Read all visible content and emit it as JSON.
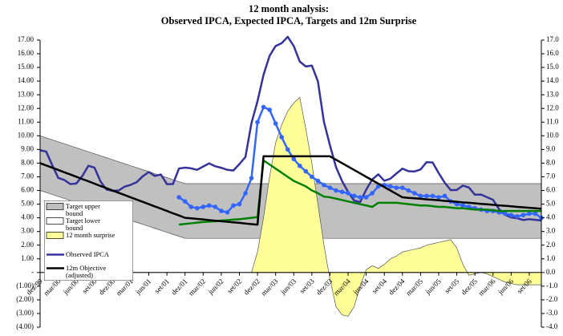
{
  "chart_data": {
    "type": "line",
    "title": "12 month analysis:",
    "subtitle": "Observed IPCA, Expected IPCA, Targets and 12m Surprise",
    "categories": [
      "dez/99",
      null,
      null,
      "mar/00",
      null,
      null,
      "jun/00",
      null,
      null,
      "set/00",
      null,
      null,
      "dez/00",
      null,
      null,
      "mar/01",
      null,
      null,
      "jun/01",
      null,
      null,
      "set/01",
      null,
      null,
      "dez/01",
      null,
      null,
      "mar/02",
      null,
      null,
      "jun/02",
      null,
      null,
      "set/02",
      null,
      null,
      "dez/02",
      null,
      null,
      "mar/03",
      null,
      null,
      "jun/03",
      null,
      null,
      "set/03",
      null,
      null,
      "dez/03",
      null,
      null,
      "mar/04",
      null,
      null,
      "jun/04",
      null,
      null,
      "set/04",
      null,
      null,
      "dez/04",
      null,
      null,
      "mar/05",
      null,
      null,
      "jun/05",
      null,
      null,
      "set/05",
      null,
      null,
      "dez/05",
      null,
      null,
      "mar/06",
      null,
      null,
      "jun/06",
      null,
      null,
      "set/06",
      null,
      null
    ],
    "ylim": [
      -4,
      17
    ],
    "yticks": [
      {
        "value": 17,
        "label": "17.00"
      },
      {
        "value": 16,
        "label": "16.00"
      },
      {
        "value": 15,
        "label": "15.00"
      },
      {
        "value": 14,
        "label": "14.00"
      },
      {
        "value": 13,
        "label": "13.00"
      },
      {
        "value": 12,
        "label": "12.00"
      },
      {
        "value": 11,
        "label": "11.00"
      },
      {
        "value": 10,
        "label": "10.00"
      },
      {
        "value": 9,
        "label": "9.00"
      },
      {
        "value": 8,
        "label": "8.00"
      },
      {
        "value": 7,
        "label": "7.00"
      },
      {
        "value": 6,
        "label": "6.00"
      },
      {
        "value": 5,
        "label": "5.00"
      },
      {
        "value": 4,
        "label": "4.00"
      },
      {
        "value": 3,
        "label": "3.00"
      },
      {
        "value": 2,
        "label": "2.00"
      },
      {
        "value": 1,
        "label": "1.00"
      },
      {
        "value": 0,
        "label": "-"
      },
      {
        "value": -1,
        "label": "(1.00)"
      },
      {
        "value": -2,
        "label": "(2.00)"
      },
      {
        "value": -3,
        "label": "(3.00)"
      },
      {
        "value": -4,
        "label": "(4.00)"
      }
    ],
    "y2lim": [
      -4,
      17
    ],
    "y2ticks": [
      {
        "value": 17,
        "label": "17.0"
      },
      {
        "value": 16,
        "label": "16.0"
      },
      {
        "value": 15,
        "label": "15.0"
      },
      {
        "value": 14,
        "label": "14.0"
      },
      {
        "value": 13,
        "label": "13.0"
      },
      {
        "value": 12,
        "label": "12.0"
      },
      {
        "value": 11,
        "label": "11.0"
      },
      {
        "value": 10,
        "label": "10.0"
      },
      {
        "value": 9,
        "label": "9.0"
      },
      {
        "value": 8,
        "label": "8.0"
      },
      {
        "value": 7,
        "label": "7.0"
      },
      {
        "value": 6,
        "label": "6.0"
      },
      {
        "value": 5,
        "label": "5.0"
      },
      {
        "value": 4,
        "label": "4.0"
      },
      {
        "value": 3,
        "label": "3.0"
      },
      {
        "value": 2,
        "label": "2.0"
      },
      {
        "value": 1,
        "label": "1.0"
      },
      {
        "value": 0,
        "label": "0.0"
      },
      {
        "value": -1,
        "label": "-1.0"
      },
      {
        "value": -2,
        "label": "-2.0"
      },
      {
        "value": -3,
        "label": "-3.0"
      },
      {
        "value": -4,
        "label": "-4.0"
      }
    ],
    "series": [
      {
        "name": "Target upper bound",
        "style": "area",
        "color": "#c0c0c0",
        "values": [
          10,
          9.85,
          9.71,
          9.56,
          9.42,
          9.27,
          9.13,
          8.98,
          8.83,
          8.69,
          8.54,
          8.4,
          8.25,
          8.1,
          7.96,
          7.81,
          7.67,
          7.52,
          7.38,
          7.23,
          7.08,
          6.94,
          6.79,
          6.65,
          6.5,
          6.5,
          6.5,
          6.5,
          6.5,
          6.5,
          6.5,
          6.5,
          6.5,
          6.5,
          6.5,
          6.5,
          6.5,
          6.5,
          6.5,
          6.5,
          6.5,
          6.5,
          6.5,
          6.5,
          6.5,
          6.5,
          6.5,
          6.5,
          6.5,
          6.5,
          6.5,
          6.5,
          6.5,
          6.5,
          6.5,
          6.5,
          6.5,
          6.5,
          6.5,
          6.5,
          6.5,
          6.5,
          6.5,
          6.5,
          6.5,
          6.5,
          6.5,
          6.5,
          6.5,
          6.5,
          6.5,
          6.5,
          6.5,
          6.5,
          6.5,
          6.5,
          6.5,
          6.5,
          6.5,
          6.5,
          6.5,
          6.5,
          6.5,
          6.5
        ]
      },
      {
        "name": "Target lower bound",
        "style": "area",
        "color": "#ffffff",
        "values": [
          6,
          5.85,
          5.71,
          5.56,
          5.42,
          5.27,
          5.13,
          4.98,
          4.83,
          4.69,
          4.54,
          4.4,
          4.25,
          4.1,
          3.96,
          3.81,
          3.67,
          3.52,
          3.38,
          3.23,
          3.08,
          2.94,
          2.79,
          2.65,
          2.5,
          2.5,
          2.5,
          2.5,
          2.5,
          2.5,
          2.5,
          2.5,
          2.5,
          2.5,
          2.5,
          2.5,
          2.5,
          2.5,
          2.5,
          2.5,
          2.5,
          2.5,
          2.5,
          2.5,
          2.5,
          2.5,
          2.5,
          2.5,
          2.5,
          2.5,
          2.5,
          2.5,
          2.5,
          2.5,
          2.5,
          2.5,
          2.5,
          2.5,
          2.5,
          2.5,
          2.5,
          2.5,
          2.5,
          2.5,
          2.5,
          2.5,
          2.5,
          2.5,
          2.5,
          2.5,
          2.5,
          2.5,
          2.5,
          2.5,
          2.5,
          2.5,
          2.5,
          2.5,
          2.5,
          2.5,
          2.5,
          2.5,
          2.5,
          2.5
        ]
      },
      {
        "name": "12 month surprise",
        "style": "area",
        "color": "#ffff99",
        "values": [
          null,
          null,
          null,
          null,
          null,
          null,
          null,
          null,
          null,
          null,
          null,
          null,
          null,
          null,
          null,
          null,
          null,
          null,
          null,
          null,
          null,
          null,
          null,
          null,
          null,
          null,
          null,
          null,
          null,
          null,
          null,
          null,
          null,
          null,
          null,
          0,
          1.5,
          4.0,
          7.0,
          9.5,
          10.8,
          11.8,
          12.4,
          12.8,
          10.5,
          8.0,
          5.0,
          2.0,
          -0.5,
          -2.5,
          -3.1,
          -3.2,
          -2.5,
          -1.0,
          0.2,
          0.5,
          0.3,
          0.6,
          1.0,
          1.2,
          1.5,
          1.6,
          1.7,
          1.8,
          2.0,
          2.1,
          2.2,
          2.3,
          2.4,
          1.8,
          0.6,
          -0.2,
          -0.1,
          0,
          -0.1,
          -0.3,
          -0.5,
          -0.7,
          -0.8,
          -0.9,
          -0.9,
          -0.9,
          -0.9,
          -0.9
        ]
      },
      {
        "name": "Observed IPCA",
        "style": "line",
        "color": "#333399",
        "values": [
          8.94,
          8.85,
          7.86,
          6.92,
          6.77,
          6.47,
          6.51,
          7.06,
          7.81,
          7.67,
          6.66,
          6.07,
          5.97,
          6.0,
          6.28,
          6.41,
          6.61,
          7.04,
          7.35,
          7.06,
          7.17,
          6.46,
          6.47,
          7.61,
          7.67,
          7.62,
          7.51,
          7.75,
          7.98,
          7.77,
          7.66,
          7.51,
          7.46,
          7.93,
          8.45,
          10.93,
          12.53,
          14.47,
          15.85,
          16.57,
          16.77,
          17.24,
          16.57,
          15.43,
          15.07,
          15.14,
          13.98,
          11.02,
          9.3,
          7.71,
          6.69,
          5.89,
          5.26,
          5.15,
          6.06,
          6.81,
          7.18,
          6.71,
          6.86,
          7.24,
          7.6,
          7.41,
          7.39,
          7.54,
          8.07,
          8.05,
          7.27,
          6.57,
          6.02,
          6.04,
          6.36,
          6.22,
          5.69,
          5.7,
          5.51,
          5.32,
          4.63,
          4.23,
          4.03,
          3.97,
          3.84,
          3.9,
          3.85,
          3.8
        ]
      },
      {
        "style": "markers",
        "color": "#3366ff",
        "values": [
          null,
          null,
          null,
          null,
          null,
          null,
          null,
          null,
          null,
          null,
          null,
          null,
          null,
          null,
          null,
          null,
          null,
          null,
          null,
          null,
          null,
          null,
          null,
          5.5,
          5.2,
          4.8,
          4.7,
          4.8,
          4.9,
          4.8,
          4.5,
          4.4,
          4.9,
          5.0,
          5.8,
          6.9,
          11.0,
          12.1,
          11.9,
          10.9,
          9.9,
          9.0,
          8.3,
          7.8,
          7.4,
          7.0,
          6.7,
          6.4,
          6.2,
          6.0,
          5.9,
          5.8,
          5.6,
          5.5,
          5.5,
          5.8,
          6.3,
          6.4,
          6.3,
          6.2,
          6.2,
          6.0,
          5.8,
          5.6,
          5.6,
          5.6,
          5.5,
          5.6,
          5.2,
          5.0,
          4.9,
          4.8,
          4.7,
          4.6,
          4.5,
          4.5,
          4.4,
          4.3,
          4.2,
          4.1,
          4.2,
          4.3,
          4.3,
          4.0
        ]
      },
      {
        "style": "line",
        "color": "#008000",
        "values": [
          null,
          null,
          null,
          null,
          null,
          null,
          null,
          null,
          null,
          null,
          null,
          null,
          null,
          null,
          null,
          null,
          null,
          null,
          null,
          null,
          null,
          null,
          null,
          3.5,
          3.55,
          3.6,
          3.65,
          3.7,
          3.72,
          3.75,
          3.8,
          3.83,
          3.87,
          3.9,
          3.95,
          4.0,
          4.05,
          8.2,
          7.9,
          7.6,
          7.3,
          7.0,
          6.7,
          6.5,
          6.3,
          6.0,
          5.8,
          5.55,
          5.5,
          5.4,
          5.3,
          5.2,
          5.1,
          5.0,
          4.9,
          4.8,
          5.1,
          5.1,
          5.1,
          5.1,
          5.05,
          5.0,
          4.95,
          4.9,
          4.9,
          4.85,
          4.8,
          4.8,
          4.75,
          4.7,
          4.7,
          4.65,
          4.6,
          4.6,
          4.6,
          4.55,
          4.5,
          4.5,
          4.5,
          4.5,
          4.5,
          4.5,
          4.5,
          4.5
        ]
      },
      {
        "name": "12m Objective (adjusted)",
        "style": "line",
        "color": "#000000",
        "values": [
          8.0,
          7.83,
          7.67,
          7.5,
          7.33,
          7.17,
          7.0,
          6.83,
          6.67,
          6.5,
          6.33,
          6.17,
          6.0,
          5.83,
          5.67,
          5.5,
          5.33,
          5.17,
          5.0,
          4.83,
          4.67,
          4.5,
          4.33,
          4.17,
          4.0,
          3.96,
          3.92,
          3.88,
          3.83,
          3.79,
          3.75,
          3.71,
          3.67,
          3.63,
          3.58,
          3.54,
          3.5,
          8.5,
          8.5,
          8.5,
          8.5,
          8.5,
          8.5,
          8.5,
          8.5,
          8.5,
          8.5,
          8.5,
          8.5,
          8.25,
          8.0,
          7.75,
          7.5,
          7.25,
          7.0,
          6.75,
          6.5,
          6.25,
          6.0,
          5.75,
          5.5,
          5.46,
          5.43,
          5.39,
          5.35,
          5.32,
          5.28,
          5.24,
          5.21,
          5.17,
          5.13,
          5.1,
          5.06,
          5.02,
          4.99,
          4.95,
          4.91,
          4.88,
          4.84,
          4.8,
          4.77,
          4.73,
          4.7,
          4.66
        ]
      }
    ]
  }
}
